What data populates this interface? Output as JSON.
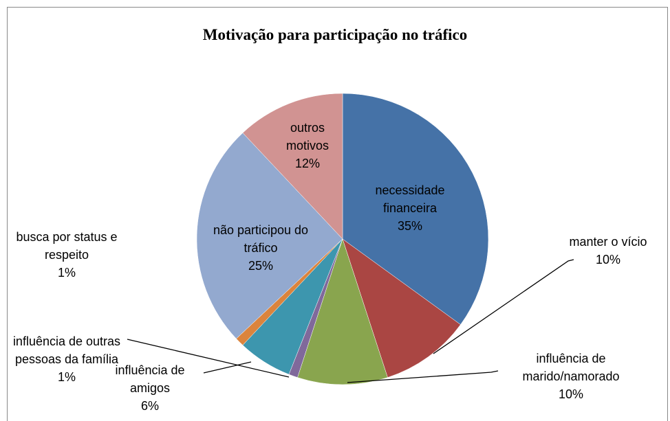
{
  "chart_data": {
    "type": "pie",
    "title": "Motivação para participação no tráfico",
    "categories": [
      "necessidade financeira",
      "manter o vício",
      "influência de marido/namorado",
      "influência de outras pessoas da família",
      "influência de amigos",
      "busca por status e respeito",
      "não participou do tráfico",
      "outros motivos"
    ],
    "values": [
      35,
      10,
      10,
      1,
      6,
      1,
      25,
      12
    ],
    "value_labels": [
      "35%",
      "10%",
      "10%",
      "1%",
      "6%",
      "1%",
      "25%",
      "12%"
    ],
    "colors": [
      "#4572a7",
      "#aa4643",
      "#89a54e",
      "#80699b",
      "#3d96ae",
      "#db843d",
      "#93a9cf",
      "#d19392"
    ]
  }
}
